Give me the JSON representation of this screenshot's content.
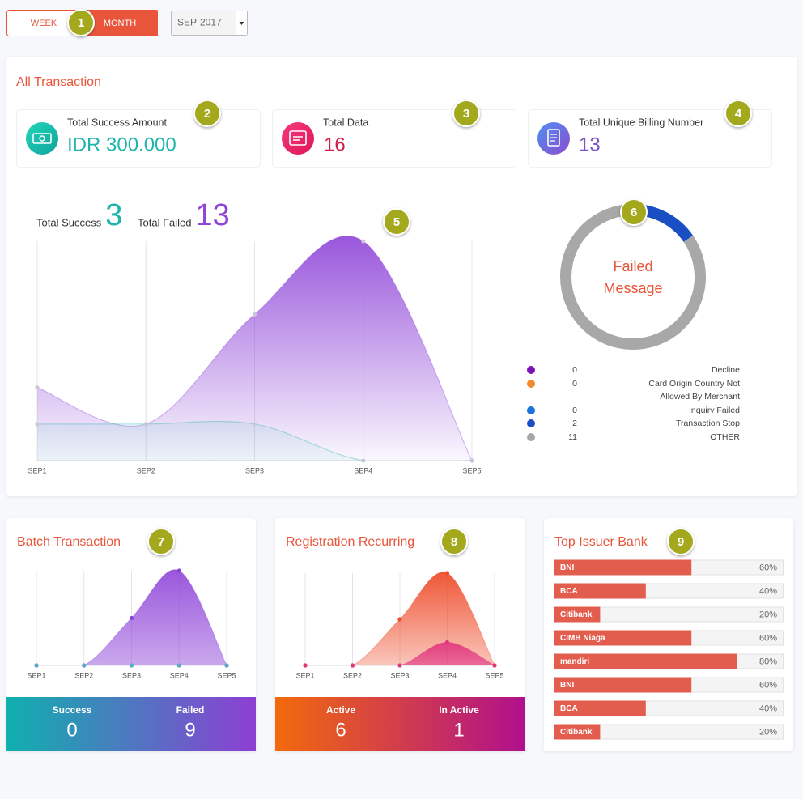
{
  "toolbar": {
    "week": "WEEK",
    "month": "MONTH",
    "period": "SEP-2017"
  },
  "badges": [
    1,
    2,
    3,
    4,
    5,
    6,
    7,
    8,
    9
  ],
  "all_transaction": {
    "title": "All Transaction",
    "cards": [
      {
        "label": "Total Success Amount",
        "value": "IDR 300.000"
      },
      {
        "label": "Total Data",
        "value": 16
      },
      {
        "label": "Total Unique Billing Number",
        "value": 13
      }
    ]
  },
  "chart_data": [
    {
      "type": "area",
      "categories": [
        "SEP1",
        "SEP2",
        "SEP3",
        "SEP4",
        "SEP5"
      ],
      "ylim": [
        0,
        6
      ],
      "series": [
        {
          "name": "Total Success",
          "total": 3,
          "color": "#1fb5ad",
          "values": [
            1,
            1,
            1,
            0,
            0
          ]
        },
        {
          "name": "Total Failed",
          "total": 13,
          "color": "#8e44d8",
          "values": [
            2,
            1,
            4,
            6,
            0
          ]
        }
      ]
    },
    {
      "type": "donut",
      "title": "Failed Message",
      "categories": [
        "Decline",
        "Card Origin Country Not Allowed By Merchant",
        "Inquiry Failed",
        "Transaction Stop",
        "OTHER"
      ],
      "values": [
        0,
        0,
        0,
        2,
        11
      ],
      "colors": [
        "#7b12b8",
        "#f28a2e",
        "#1a73d9",
        "#1a4fc4",
        "#a8a8a8"
      ]
    },
    {
      "type": "area",
      "title": "Batch Transaction",
      "categories": [
        "SEP1",
        "SEP2",
        "SEP3",
        "SEP4",
        "SEP5"
      ],
      "ylim": [
        0,
        6
      ],
      "series": [
        {
          "name": "Success",
          "total": 0,
          "color": "#5aa9c9",
          "values": [
            0,
            0,
            0,
            0,
            0
          ]
        },
        {
          "name": "Failed",
          "total": 9,
          "color": "#8e44d8",
          "values": [
            0,
            0,
            3,
            6,
            0
          ]
        }
      ]
    },
    {
      "type": "area",
      "title": "Registration Recurring",
      "categories": [
        "SEP1",
        "SEP2",
        "SEP3",
        "SEP4",
        "SEP5"
      ],
      "ylim": [
        0,
        4
      ],
      "series": [
        {
          "name": "Active",
          "total": 6,
          "color": "#ee4e2c",
          "values": [
            0,
            0,
            2,
            4,
            0
          ]
        },
        {
          "name": "In Active",
          "total": 1,
          "color": "#e0357f",
          "values": [
            0,
            0,
            0,
            1,
            0
          ]
        }
      ]
    },
    {
      "type": "hbar",
      "title": "Top Issuer Bank",
      "categories": [
        "BNI",
        "BCA",
        "Citibank",
        "CIMB Niaga",
        "mandiri",
        "BNI",
        "BCA",
        "Citibank"
      ],
      "values": [
        60,
        40,
        20,
        60,
        80,
        60,
        40,
        20
      ],
      "value_labels": [
        "60%",
        "40%",
        "20%",
        "60%",
        "80%",
        "60%",
        "40%",
        "20%"
      ],
      "xlim": [
        0,
        100
      ],
      "color": "#e35d4f"
    }
  ]
}
